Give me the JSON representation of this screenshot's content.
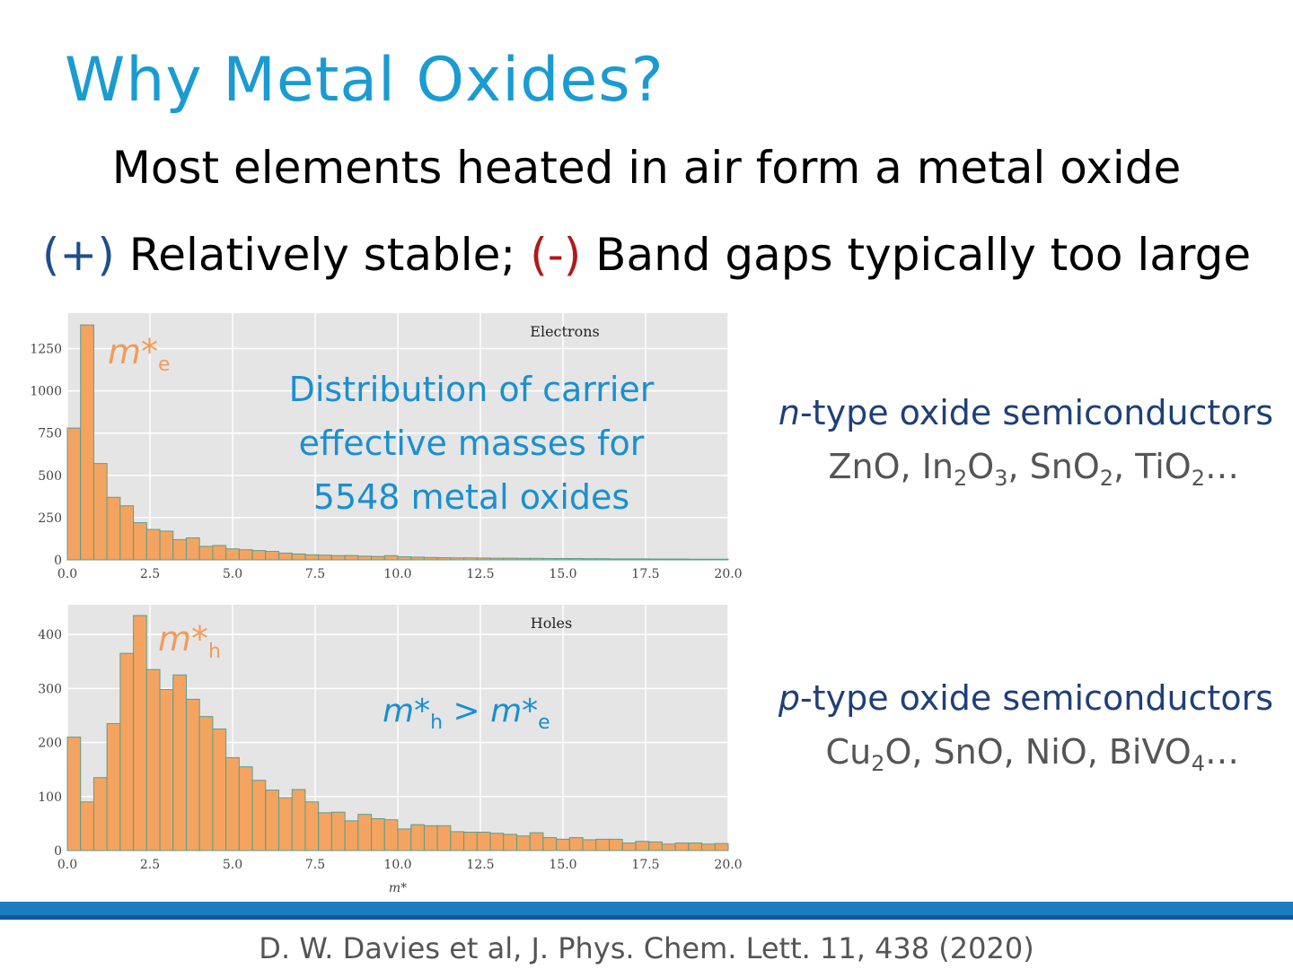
{
  "slide": {
    "title": "Why Metal Oxides?",
    "line1": "Most elements heated in air form a metal oxide",
    "line2_plus": "(+)",
    "line2_a": " Relatively stable; ",
    "line2_minus": "(-)",
    "line2_b": " Band gaps typically too large",
    "annotation": [
      "Distribution of carrier",
      "effective masses for",
      "5548 metal oxides"
    ],
    "electron_mass_label": "m*",
    "electron_mass_sub": "e",
    "hole_mass_label": "m*",
    "hole_mass_sub": "h",
    "inequality": {
      "left": "m*",
      "left_sub": "h",
      "op": " > ",
      "right": "m*",
      "right_sub": "e"
    },
    "ntype": {
      "prefix": "n",
      "heading": "-type oxide semiconductors",
      "examples": [
        {
          "t": "ZnO, In"
        },
        {
          "s": "2"
        },
        {
          "t": "O"
        },
        {
          "s": "3"
        },
        {
          "t": ", SnO"
        },
        {
          "s": "2"
        },
        {
          "t": ", TiO"
        },
        {
          "s": "2"
        },
        {
          "t": "…"
        }
      ]
    },
    "ptype": {
      "prefix": "p",
      "heading": "-type oxide semiconductors",
      "examples": [
        {
          "t": "Cu"
        },
        {
          "s": "2"
        },
        {
          "t": "O, SnO, NiO, BiVO"
        },
        {
          "s": "4"
        },
        {
          "t": "…"
        }
      ]
    },
    "citation": "D. W. Davies et al, J. Phys. Chem. Lett. 11, 438 (2020)"
  },
  "colors": {
    "accent": "#1a9bd2",
    "bar_fill": "#f4a460",
    "bar_edge": "#5a9e8f",
    "plot_bg": "#e5e5e5"
  },
  "chart_data": [
    {
      "type": "bar",
      "title": "Electrons",
      "xlabel": "",
      "ylabel": "",
      "xlim": [
        0,
        20
      ],
      "ylim": [
        0,
        1460
      ],
      "bin_width": 0.4,
      "x_ticks": [
        "0.0",
        "2.5",
        "5.0",
        "7.5",
        "10.0",
        "12.5",
        "15.0",
        "17.5",
        "20.0"
      ],
      "y_ticks": [
        "0",
        "250",
        "500",
        "750",
        "1000",
        "1250"
      ],
      "values": [
        780,
        1390,
        570,
        370,
        320,
        220,
        180,
        170,
        120,
        130,
        80,
        85,
        65,
        60,
        55,
        50,
        40,
        35,
        30,
        28,
        25,
        26,
        22,
        20,
        25,
        18,
        16,
        14,
        13,
        12,
        12,
        11,
        10,
        10,
        9,
        9,
        8,
        8,
        8,
        7,
        7,
        6,
        6,
        6,
        5,
        5,
        5,
        4,
        4,
        4
      ]
    },
    {
      "type": "bar",
      "title": "Holes",
      "xlabel": "m*",
      "ylabel": "",
      "xlim": [
        0,
        20
      ],
      "ylim": [
        0,
        455
      ],
      "bin_width": 0.4,
      "x_ticks": [
        "0.0",
        "2.5",
        "5.0",
        "7.5",
        "10.0",
        "12.5",
        "15.0",
        "17.5",
        "20.0"
      ],
      "y_ticks": [
        "0",
        "100",
        "200",
        "300",
        "400"
      ],
      "values": [
        210,
        90,
        135,
        235,
        365,
        435,
        335,
        298,
        325,
        280,
        248,
        225,
        172,
        155,
        130,
        112,
        98,
        113,
        90,
        70,
        71,
        55,
        67,
        59,
        57,
        40,
        48,
        46,
        46,
        35,
        34,
        34,
        32,
        30,
        27,
        33,
        24,
        21,
        24,
        20,
        21,
        21,
        14,
        17,
        16,
        12,
        14,
        14,
        12,
        13
      ]
    }
  ]
}
